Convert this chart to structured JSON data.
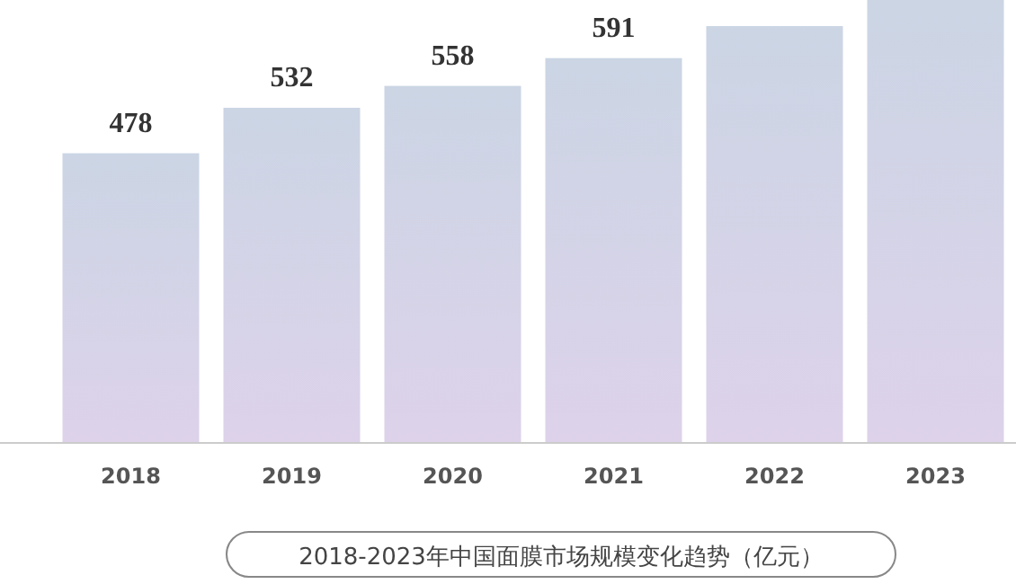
{
  "chart_data": {
    "type": "bar",
    "title": "2018-2023年中国面膜市场规模变化趋势（亿元）",
    "categories": [
      "2018",
      "2019",
      "2020",
      "2021",
      "2022",
      "2023"
    ],
    "values": [
      478,
      532,
      558,
      591,
      629,
      660
    ],
    "ylim": [
      135,
      660
    ],
    "value_labels": [
      "478",
      "532",
      "558",
      "591",
      null,
      null
    ],
    "color": "#cbd5e4"
  }
}
